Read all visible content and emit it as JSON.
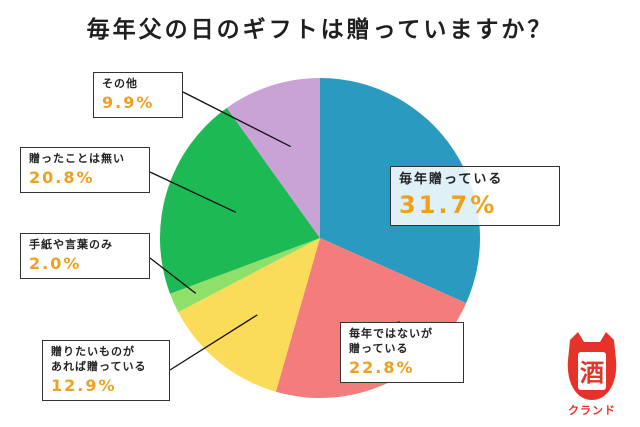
{
  "chart_data": {
    "type": "pie",
    "title": "毎年父の日のギフトは贈っていますか？",
    "slices": [
      {
        "label": "毎年贈っている",
        "label_lines": [
          "毎年贈っている"
        ],
        "value": 31.7,
        "display": "31.7%",
        "color": "#2a9bbf"
      },
      {
        "label": "毎年ではないが贈っている",
        "label_lines": [
          "毎年ではないが",
          "贈っている"
        ],
        "value": 22.8,
        "display": "22.8%",
        "color": "#f47c7c"
      },
      {
        "label": "贈りたいものがあれば贈っている",
        "label_lines": [
          "贈りたいものが",
          "あれば贈っている"
        ],
        "value": 12.9,
        "display": "12.9%",
        "color": "#fbdc5a"
      },
      {
        "label": "手紙や言葉のみ",
        "label_lines": [
          "手紙や言葉のみ"
        ],
        "value": 2.0,
        "display": "2.0%",
        "color": "#8ee06a"
      },
      {
        "label": "贈ったことは無い",
        "label_lines": [
          "贈ったことは無い"
        ],
        "value": 20.8,
        "display": "20.8%",
        "color": "#1db954"
      },
      {
        "label": "その他",
        "label_lines": [
          "その他"
        ],
        "value": 9.9,
        "display": "9.9%",
        "color": "#c9a3d6"
      }
    ]
  },
  "logo": {
    "text": "クランド",
    "glyph": "酒",
    "color": "#e6332a"
  }
}
